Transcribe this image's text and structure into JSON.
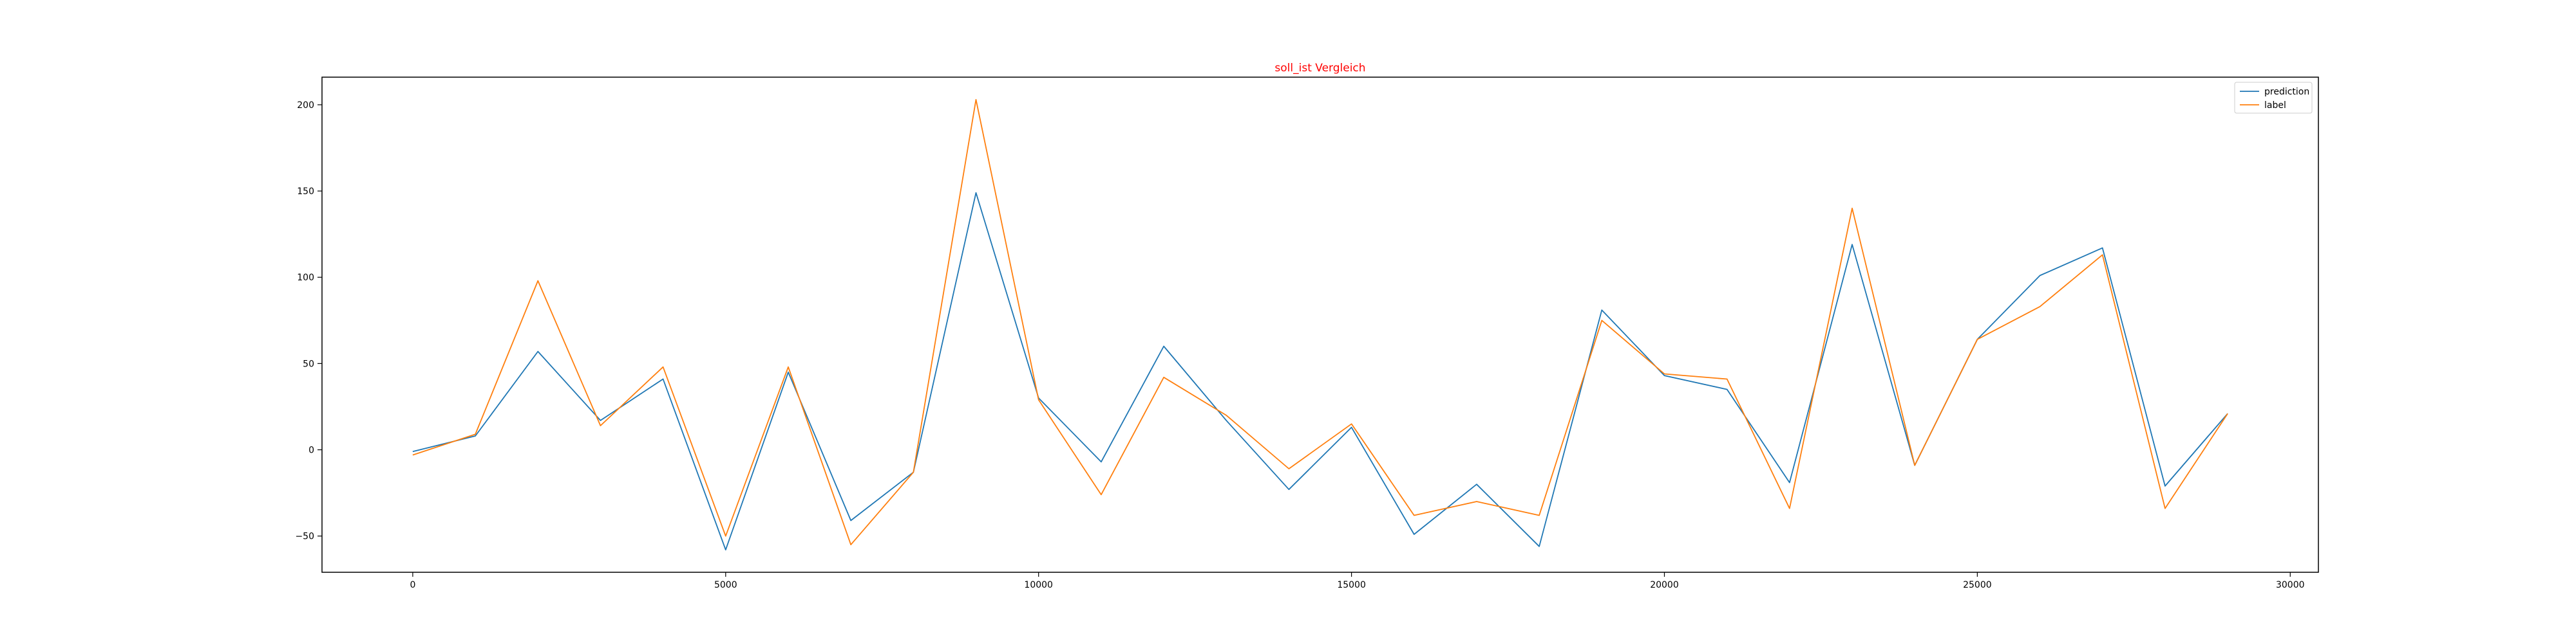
{
  "chart_data": {
    "type": "line",
    "title": "soll_ist Vergleich",
    "title_color": "#ff0000",
    "xlabel": "",
    "ylabel": "",
    "xlim": [
      -1450,
      30450
    ],
    "ylim": [
      -71,
      216
    ],
    "xticks": [
      0,
      5000,
      10000,
      15000,
      20000,
      25000,
      30000
    ],
    "yticks": [
      -50,
      0,
      50,
      100,
      150,
      200
    ],
    "grid": false,
    "legend_position": "top-right",
    "x": [
      0,
      1000,
      2000,
      3000,
      4000,
      5000,
      6000,
      7000,
      8000,
      9000,
      10000,
      11000,
      12000,
      13000,
      14000,
      15000,
      16000,
      17000,
      18000,
      19000,
      20000,
      21000,
      22000,
      23000,
      24000,
      25000,
      26000,
      27000,
      28000,
      29000
    ],
    "series": [
      {
        "name": "prediction",
        "color": "#1f77b4",
        "values": [
          -1,
          8,
          57,
          17,
          41,
          -58,
          45,
          -41,
          -13,
          149,
          30,
          -7,
          60,
          17,
          -23,
          13,
          -49,
          -20,
          -56,
          81,
          43,
          35,
          -19,
          119,
          -9,
          64,
          101,
          117,
          -21,
          21
        ]
      },
      {
        "name": "label",
        "color": "#ff7f0e",
        "values": [
          -3,
          9,
          98,
          14,
          48,
          -50,
          48,
          -55,
          -13,
          203,
          29,
          -26,
          42,
          20,
          -11,
          15,
          -38,
          -30,
          -38,
          75,
          44,
          41,
          -34,
          140,
          -9,
          64,
          83,
          113,
          -34,
          21
        ]
      }
    ]
  }
}
